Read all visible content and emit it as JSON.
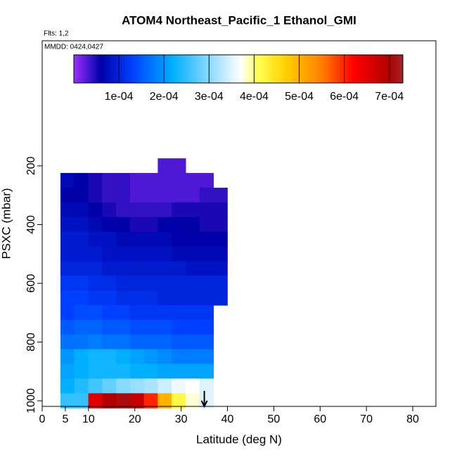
{
  "chart_data": {
    "type": "curtain",
    "title": "ATOM4 Northeast_Pacific_1 Ethanol_GMI",
    "flights": "Flts: 1,2",
    "dates": "MMDD: 0424,0427",
    "xlabel": "Latitude (deg N)",
    "ylabel": "PSXC (mbar)",
    "xlim": [
      0,
      85
    ],
    "xticks": [
      0,
      5,
      10,
      20,
      30,
      40,
      50,
      60,
      70,
      80
    ],
    "ylim": [
      1019,
      -226
    ],
    "yticks": [
      200,
      400,
      600,
      800,
      1000
    ],
    "latitude_edges": [
      4,
      7,
      10,
      13,
      16,
      19,
      22,
      25,
      28,
      31,
      34,
      37,
      40
    ],
    "pressure_edges": [
      175,
      225,
      275,
      325,
      375,
      425,
      475,
      525,
      575,
      625,
      675,
      725,
      775,
      825,
      875,
      925,
      975,
      1025
    ],
    "values": [
      [
        null,
        null,
        null,
        null,
        null,
        null,
        null,
        3e-05,
        3e-05,
        null,
        null,
        null
      ],
      [
        7e-05,
        6e-05,
        5e-05,
        4e-05,
        4e-05,
        3e-05,
        3e-05,
        3e-05,
        3e-05,
        3e-05,
        3e-05,
        null
      ],
      [
        6e-05,
        6e-05,
        5e-05,
        4e-05,
        4e-05,
        3e-05,
        3e-05,
        3e-05,
        3e-05,
        3e-05,
        4e-05,
        4e-05
      ],
      [
        7e-05,
        7e-05,
        6e-05,
        5e-05,
        4e-05,
        4e-05,
        4e-05,
        4e-05,
        5e-05,
        5e-05,
        5e-05,
        5e-05
      ],
      [
        8e-05,
        8e-05,
        7e-05,
        6e-05,
        6e-05,
        5e-05,
        5e-05,
        6e-05,
        6e-05,
        6e-05,
        5e-05,
        5e-05
      ],
      [
        9e-05,
        9e-05,
        8e-05,
        8e-05,
        7e-05,
        7e-05,
        7e-05,
        7e-05,
        6e-05,
        6e-05,
        6e-05,
        6e-05
      ],
      [
        9e-05,
        9e-05,
        9e-05,
        8e-05,
        8e-05,
        8e-05,
        8e-05,
        8e-05,
        7e-05,
        7e-05,
        7e-05,
        7e-05
      ],
      [
        0.0001,
        0.0001,
        0.0001,
        9e-05,
        9e-05,
        9e-05,
        9e-05,
        9e-05,
        9e-05,
        8e-05,
        8e-05,
        8e-05
      ],
      [
        0.00012,
        0.00012,
        0.00011,
        0.00011,
        0.0001,
        0.0001,
        0.0001,
        0.0001,
        0.0001,
        0.0001,
        0.0001,
        0.0001
      ],
      [
        0.00013,
        0.00013,
        0.00012,
        0.00012,
        0.00011,
        0.00011,
        0.00011,
        0.0001,
        0.0001,
        0.0001,
        0.0001,
        0.0001
      ],
      [
        0.00013,
        0.00014,
        0.00014,
        0.00013,
        0.00013,
        0.00012,
        0.00012,
        0.00012,
        0.00012,
        0.00012,
        0.00012,
        null
      ],
      [
        0.00015,
        0.00016,
        0.00016,
        0.00015,
        0.00015,
        0.00014,
        0.00014,
        0.00014,
        0.00013,
        0.00013,
        0.00013,
        null
      ],
      [
        0.00017,
        0.00017,
        0.00018,
        0.00017,
        0.00017,
        0.00016,
        0.00016,
        0.00016,
        0.00015,
        0.00015,
        0.00015,
        null
      ],
      [
        0.0002,
        0.00022,
        0.00023,
        0.00023,
        0.00022,
        0.00021,
        0.0002,
        0.00019,
        0.00018,
        0.00018,
        0.00018,
        null
      ],
      [
        0.00021,
        0.00022,
        0.00023,
        0.00023,
        0.00023,
        0.00022,
        0.00022,
        0.00021,
        0.00021,
        0.00021,
        0.00021,
        null
      ],
      [
        0.00022,
        0.00024,
        0.00026,
        0.00028,
        0.0003,
        0.00031,
        0.00032,
        0.00034,
        0.00036,
        0.00037,
        0.00035,
        null
      ],
      [
        0.00025,
        0.00025,
        0.00065,
        0.0007,
        0.00071,
        0.00068,
        0.0006,
        0.0005,
        0.00042,
        0.00038,
        0.00035,
        null
      ]
    ],
    "marker_latitude": 35,
    "colorbar": {
      "lim": [
        0,
        0.00073
      ],
      "ticks": [
        {
          "value": 0.0001,
          "label": "1e-04"
        },
        {
          "value": 0.0002,
          "label": "2e-04"
        },
        {
          "value": 0.0003,
          "label": "3e-04"
        },
        {
          "value": 0.0004,
          "label": "4e-04"
        },
        {
          "value": 0.0005,
          "label": "5e-04"
        },
        {
          "value": 0.0006,
          "label": "6e-04"
        },
        {
          "value": 0.0007,
          "label": "7e-04"
        }
      ],
      "stops": [
        [
          0,
          "#9b30ff"
        ],
        [
          6e-05,
          "#0000a8"
        ],
        [
          0.00013,
          "#0040ff"
        ],
        [
          0.00022,
          "#00b0ff"
        ],
        [
          0.00037,
          "#ffffff"
        ],
        [
          0.00041,
          "#ffff50"
        ],
        [
          0.00047,
          "#ffd000"
        ],
        [
          0.00055,
          "#ff8000"
        ],
        [
          0.00062,
          "#ff0000"
        ],
        [
          0.0007,
          "#b00000"
        ],
        [
          0.00073,
          "#a02828"
        ]
      ]
    }
  }
}
